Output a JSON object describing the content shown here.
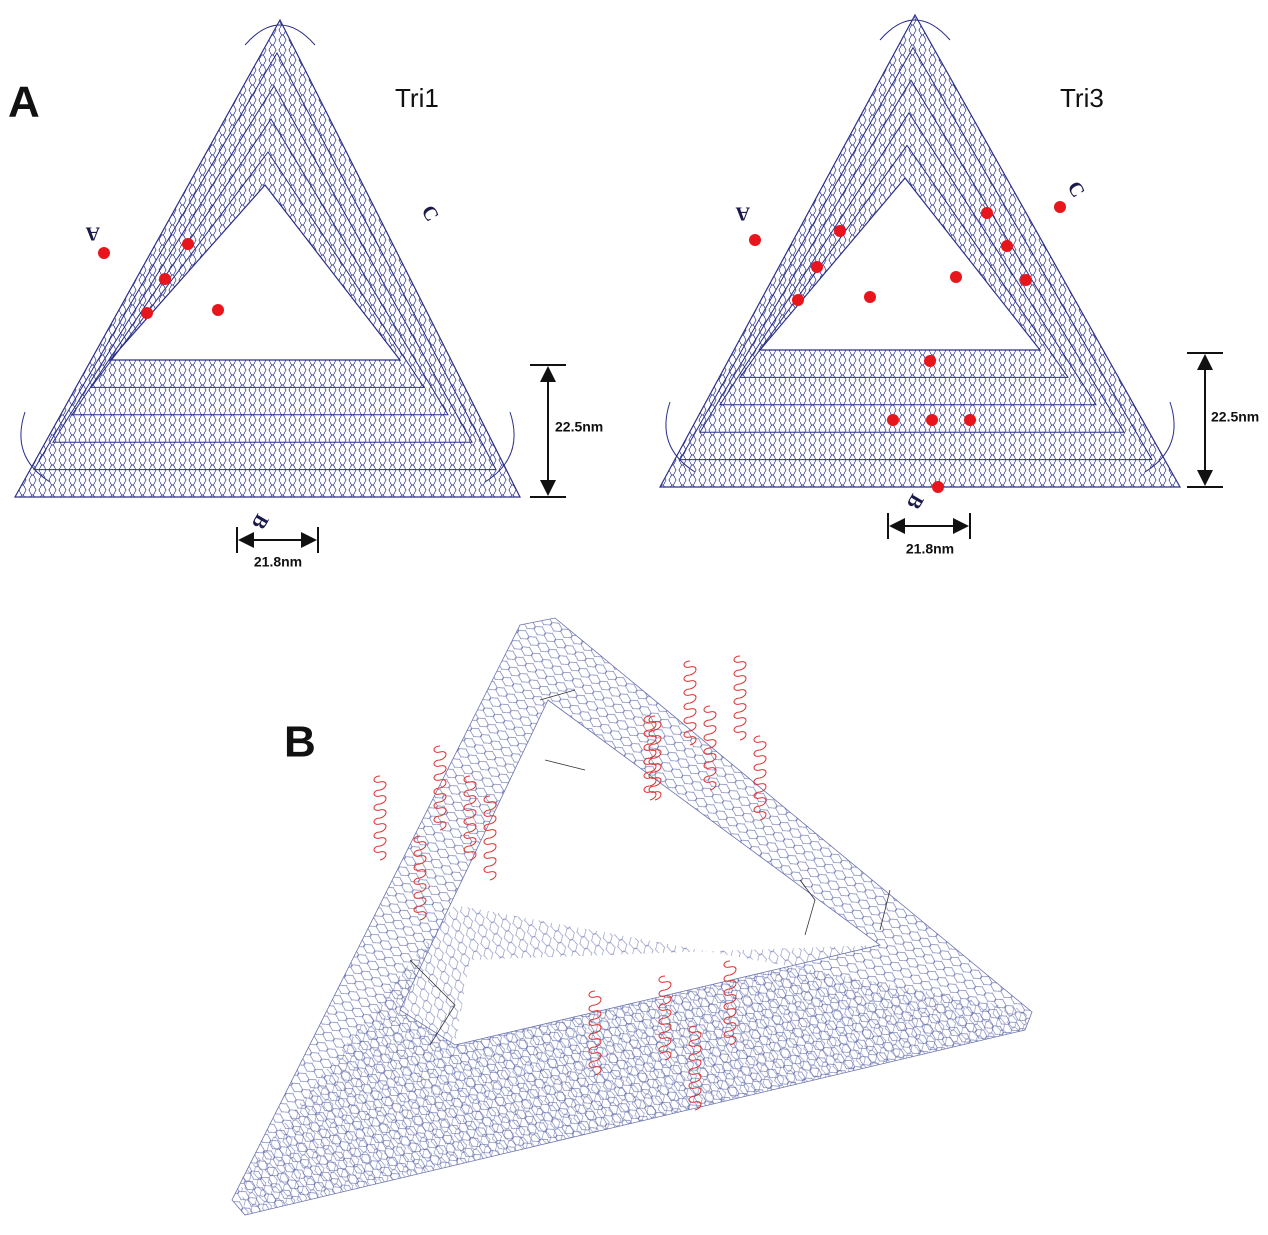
{
  "panels": [
    {
      "label": "A",
      "designs": [
        {
          "name": "Tri1",
          "height": "22.5nm",
          "width": "21.8nm",
          "corners": [
            "A",
            "B",
            "C"
          ]
        },
        {
          "name": "Tri3",
          "height": "22.5nm",
          "width": "21.8nm",
          "corners": [
            "A",
            "B",
            "C"
          ]
        }
      ]
    },
    {
      "label": "B"
    }
  ]
}
